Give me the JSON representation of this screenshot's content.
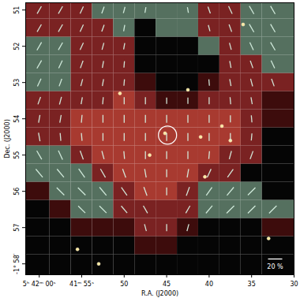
{
  "chart_data": {
    "type": "vector",
    "xlabel": "R.A. (J2000)",
    "ylabel": "Dec. (J2000)",
    "xlim": [
      61.6,
      30
    ],
    "ylim": [
      58.3,
      50.8
    ],
    "xticks": [
      {
        "value": 60,
        "label": "5ʰ 42ᵐ 00ˢ"
      },
      {
        "value": 55,
        "label": "41ᵐ 55ˢ"
      },
      50,
      45,
      40,
      35,
      30
    ],
    "yticks": [
      51,
      52,
      53,
      54,
      55,
      56,
      57,
      {
        "value": 58,
        "label": "-1° 58′"
      }
    ],
    "grid": false,
    "color": "#d6efe0",
    "map": {
      "ra": [
        60,
        57.5,
        55,
        52.5,
        50,
        47.5,
        45,
        42.5,
        40,
        37.5,
        35,
        32.5
      ],
      "dec": [
        51,
        51.5,
        52,
        52.5,
        53,
        53.5,
        54,
        54.5,
        55,
        55.5,
        56,
        56.5,
        57,
        57.5,
        58
      ],
      "palette": [
        "#050505",
        "#3d0c0c",
        "#7a2222",
        "#a83a30",
        "#55705f"
      ],
      "image": [
        [
          2,
          2,
          2,
          4,
          4,
          4,
          4,
          4,
          2,
          2,
          4,
          4
        ],
        [
          2,
          2,
          2,
          2,
          4,
          0,
          4,
          4,
          2,
          2,
          4,
          4
        ],
        [
          4,
          4,
          2,
          2,
          2,
          0,
          0,
          0,
          4,
          2,
          4,
          4
        ],
        [
          4,
          4,
          2,
          2,
          2,
          0,
          0,
          0,
          0,
          2,
          2,
          4
        ],
        [
          4,
          4,
          2,
          2,
          2,
          1,
          0,
          0,
          1,
          2,
          2,
          2
        ],
        [
          2,
          2,
          2,
          2,
          3,
          2,
          1,
          1,
          2,
          2,
          2,
          1
        ],
        [
          2,
          2,
          3,
          3,
          3,
          3,
          3,
          3,
          3,
          3,
          2,
          1
        ],
        [
          2,
          2,
          3,
          3,
          3,
          3,
          3,
          3,
          3,
          3,
          2,
          0
        ],
        [
          4,
          4,
          2,
          3,
          3,
          3,
          3,
          3,
          3,
          2,
          2,
          0
        ],
        [
          4,
          4,
          4,
          2,
          3,
          3,
          3,
          3,
          2,
          2,
          0,
          0
        ],
        [
          1,
          4,
          4,
          4,
          2,
          3,
          3,
          2,
          4,
          4,
          4,
          0
        ],
        [
          0,
          1,
          4,
          4,
          2,
          2,
          2,
          2,
          4,
          4,
          4,
          4
        ],
        [
          0,
          0,
          1,
          1,
          1,
          2,
          2,
          1,
          0,
          0,
          0,
          1
        ],
        [
          0,
          0,
          0,
          0,
          0,
          1,
          1,
          0,
          0,
          0,
          0,
          0
        ],
        [
          0,
          0,
          0,
          0,
          0,
          0,
          0,
          0,
          0,
          0,
          0,
          0
        ]
      ],
      "pa": [
        [
          -30,
          -30,
          -25,
          -20,
          -15,
          -10,
          null,
          10,
          20,
          25,
          30,
          30
        ],
        [
          -30,
          -30,
          -25,
          -20,
          -10,
          null,
          null,
          null,
          15,
          20,
          30,
          30
        ],
        [
          -30,
          -30,
          -25,
          -15,
          -10,
          null,
          null,
          null,
          null,
          15,
          25,
          30
        ],
        [
          -30,
          -25,
          -20,
          -10,
          -5,
          null,
          null,
          null,
          null,
          10,
          20,
          25
        ],
        [
          -25,
          -20,
          -15,
          -10,
          -5,
          null,
          null,
          null,
          5,
          10,
          15,
          20
        ],
        [
          -20,
          -15,
          -10,
          -5,
          0,
          0,
          0,
          0,
          0,
          5,
          10,
          null
        ],
        [
          -10,
          -10,
          -5,
          0,
          0,
          0,
          0,
          0,
          0,
          0,
          5,
          null
        ],
        [
          10,
          5,
          5,
          0,
          0,
          0,
          0,
          0,
          0,
          0,
          -5,
          null
        ],
        [
          30,
          25,
          20,
          15,
          5,
          0,
          0,
          0,
          -5,
          -15,
          -20,
          null
        ],
        [
          40,
          40,
          35,
          30,
          20,
          10,
          0,
          -10,
          -25,
          -35,
          null,
          null
        ],
        [
          null,
          45,
          45,
          40,
          35,
          20,
          0,
          -20,
          -35,
          -40,
          -45,
          null
        ],
        [
          null,
          null,
          45,
          45,
          40,
          30,
          null,
          -30,
          -40,
          -45,
          -45,
          -45
        ],
        [
          null,
          null,
          null,
          null,
          null,
          15,
          0,
          -15,
          null,
          null,
          null,
          null
        ],
        [
          null,
          null,
          null,
          null,
          null,
          null,
          null,
          null,
          null,
          null,
          null,
          null
        ],
        [
          null,
          null,
          null,
          null,
          null,
          null,
          null,
          null,
          null,
          null,
          null,
          null
        ]
      ],
      "p": [
        [
          12,
          12,
          11,
          10,
          9,
          8,
          null,
          8,
          10,
          12,
          13,
          13
        ],
        [
          12,
          12,
          11,
          10,
          9,
          null,
          null,
          null,
          9,
          11,
          13,
          13
        ],
        [
          13,
          12,
          11,
          10,
          9,
          null,
          null,
          null,
          null,
          10,
          12,
          13
        ],
        [
          13,
          12,
          11,
          10,
          9,
          null,
          null,
          null,
          null,
          10,
          11,
          12
        ],
        [
          12,
          11,
          10,
          10,
          9,
          null,
          null,
          null,
          9,
          10,
          11,
          11
        ],
        [
          11,
          11,
          10,
          10,
          10,
          10,
          9,
          9,
          10,
          10,
          10,
          null
        ],
        [
          11,
          11,
          11,
          11,
          11,
          11,
          11,
          11,
          11,
          10,
          10,
          null
        ],
        [
          12,
          11,
          11,
          11,
          11,
          11,
          11,
          11,
          11,
          11,
          10,
          null
        ],
        [
          14,
          14,
          13,
          12,
          11,
          11,
          11,
          11,
          11,
          12,
          12,
          null
        ],
        [
          15,
          15,
          15,
          14,
          13,
          12,
          11,
          12,
          13,
          14,
          null,
          null
        ],
        [
          null,
          15,
          15,
          15,
          14,
          13,
          11,
          13,
          14,
          15,
          15,
          null
        ],
        [
          null,
          null,
          14,
          14,
          13,
          12,
          null,
          12,
          14,
          15,
          15,
          15
        ],
        [
          null,
          null,
          null,
          null,
          null,
          10,
          10,
          10,
          null,
          null,
          null,
          null
        ],
        [
          null,
          null,
          null,
          null,
          null,
          null,
          null,
          null,
          null,
          null,
          null,
          null
        ],
        [
          null,
          null,
          null,
          null,
          null,
          null,
          null,
          null,
          null,
          null,
          null,
          null
        ]
      ]
    },
    "stars": [
      [
        45.2,
        54.4
      ],
      [
        37.5,
        54.6
      ],
      [
        38.5,
        54.2
      ],
      [
        50.5,
        53.3
      ],
      [
        41,
        54.5
      ],
      [
        47,
        55
      ],
      [
        53,
        58
      ],
      [
        33,
        57.3
      ],
      [
        55.5,
        57.6
      ],
      [
        36,
        51.4
      ],
      [
        42.5,
        53.2
      ],
      [
        40.5,
        55.6
      ]
    ],
    "circle": {
      "ra": 44.9,
      "dec": 54.45,
      "radius": 0.25
    },
    "scale_bar": {
      "value": 20,
      "label": "20 %"
    }
  }
}
